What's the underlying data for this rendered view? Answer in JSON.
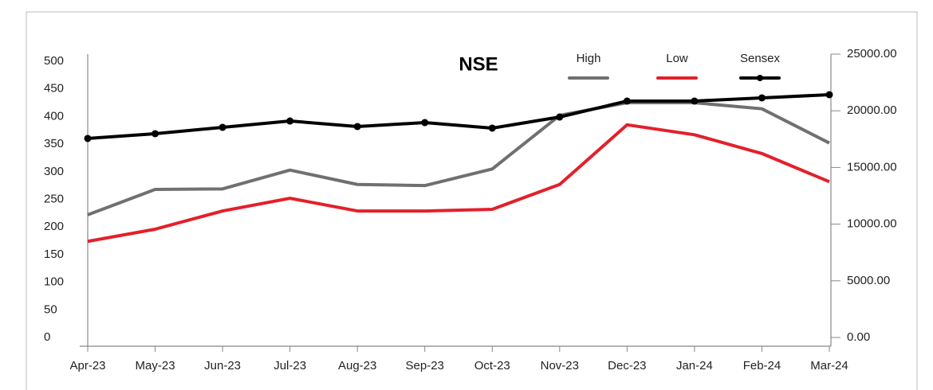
{
  "chart_data": {
    "type": "line",
    "title": "NSE",
    "categories": [
      "Apr-23",
      "May-23",
      "Jun-23",
      "Jul-23",
      "Aug-23",
      "Sep-23",
      "Oct-23",
      "Nov-23",
      "Dec-23",
      "Jan-24",
      "Feb-24",
      "Mar-24"
    ],
    "series": [
      {
        "name": "High",
        "color": "#707070",
        "values": [
          222,
          268,
          269,
          303,
          277,
          275,
          305,
          402,
          425,
          425,
          414,
          352
        ]
      },
      {
        "name": "Low",
        "color": "#e3202a",
        "values": [
          174,
          196,
          229,
          252,
          229,
          229,
          232,
          277,
          385,
          367,
          333,
          282
        ]
      },
      {
        "name": "Sensex",
        "color": "#000000",
        "axis": "y2",
        "markers": true,
        "values": [
          17560,
          17980,
          18540,
          19100,
          18610,
          18960,
          18470,
          19450,
          20860,
          20860,
          21140,
          21420
        ]
      }
    ],
    "ylim": [
      0,
      500
    ],
    "yticks": [
      0,
      50,
      100,
      150,
      200,
      250,
      300,
      350,
      400,
      450,
      500
    ],
    "y2lim": [
      0,
      25000
    ],
    "y2ticks": [
      {
        "value": 0,
        "label": "0.00"
      },
      {
        "value": 5000,
        "label": "5000.00"
      },
      {
        "value": 10000,
        "label": "10000.00"
      },
      {
        "value": 15000,
        "label": "15000.00"
      },
      {
        "value": 20000,
        "label": "20000.00"
      },
      {
        "value": 25000,
        "label": "25000.00"
      }
    ],
    "legend": "top"
  }
}
